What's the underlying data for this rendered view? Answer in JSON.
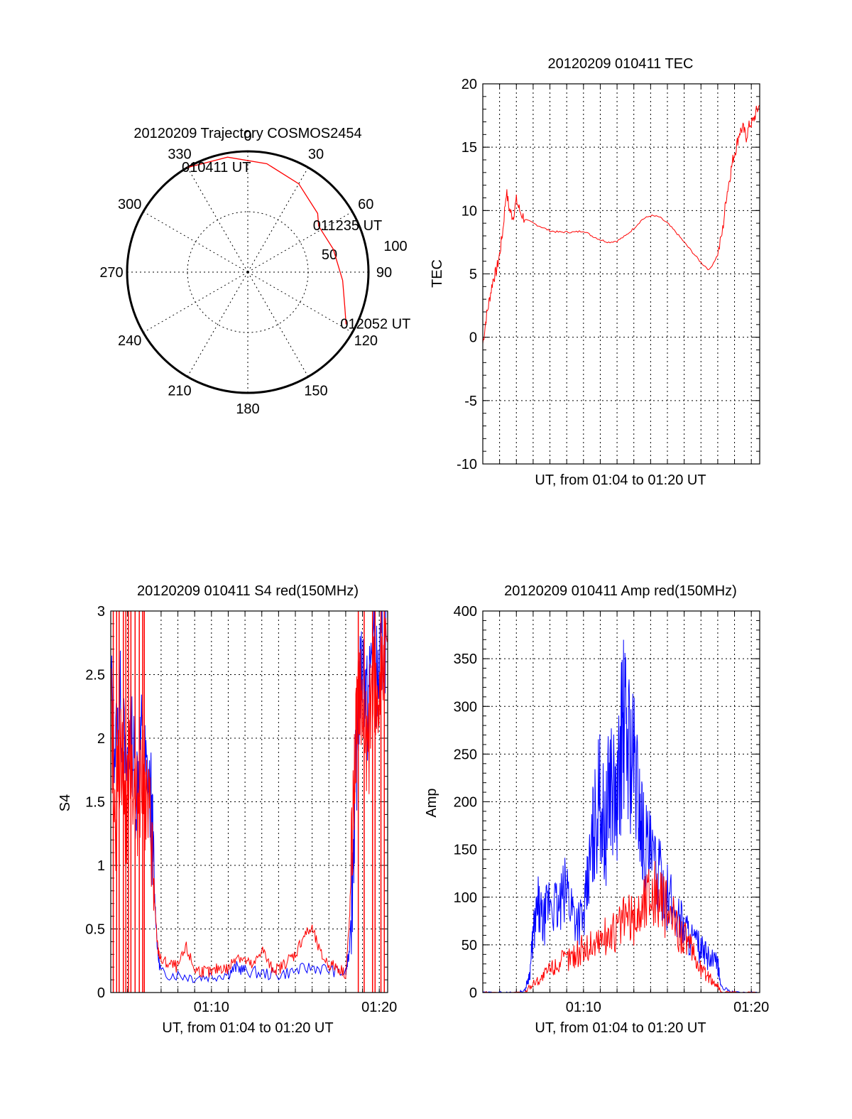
{
  "colors": {
    "red": "#ff0000",
    "blue": "#0000ff",
    "axis": "#000000",
    "grid": "#000000"
  },
  "chart_data": [
    {
      "id": "trajectory",
      "type": "polar",
      "title": "20120209 Trajectory COSMOS2454",
      "angle_labels": [
        "0",
        "30",
        "60",
        "90",
        "120",
        "150",
        "180",
        "210",
        "240",
        "270",
        "300",
        "330"
      ],
      "ring_labels": [
        "50",
        "100"
      ],
      "track": [
        {
          "azimuth": 330,
          "elevation": 0,
          "label": "010411 UT"
        },
        {
          "azimuth": 350,
          "elevation": 3
        },
        {
          "azimuth": 10,
          "elevation": 8
        },
        {
          "azimuth": 30,
          "elevation": 14
        },
        {
          "azimuth": 50,
          "elevation": 22
        },
        {
          "azimuth": 57,
          "elevation": 27,
          "label": "011235 UT"
        },
        {
          "azimuth": 75,
          "elevation": 24
        },
        {
          "azimuth": 95,
          "elevation": 19
        },
        {
          "azimuth": 110,
          "elevation": 13
        },
        {
          "azimuth": 118,
          "elevation": 7,
          "label": "012052 UT"
        }
      ]
    },
    {
      "id": "tec",
      "type": "line",
      "title": "20120209 010411 TEC",
      "xlabel": "UT, from 01:04 to 01:20 UT",
      "ylabel": "TEC",
      "x_unit": "minutes from 01:04",
      "xlim": [
        0,
        16.5
      ],
      "ylim": [
        -10,
        20
      ],
      "yticks": [
        20,
        15,
        10,
        5,
        0,
        -5,
        -10
      ],
      "grid": true,
      "series": [
        {
          "color": "red",
          "x": [
            0.0,
            0.2,
            0.4,
            0.6,
            0.8,
            1.0,
            1.2,
            1.4,
            1.6,
            1.8,
            2.0,
            2.2,
            2.5,
            3.0,
            3.5,
            4.0,
            4.5,
            5.0,
            5.5,
            6.0,
            6.5,
            7.0,
            7.5,
            8.0,
            8.5,
            9.0,
            9.5,
            10.0,
            10.5,
            11.0,
            11.5,
            12.0,
            12.5,
            13.0,
            13.5,
            14.0,
            14.3,
            14.5,
            14.7,
            14.9,
            15.1,
            15.3,
            15.5,
            15.7,
            15.9,
            16.1,
            16.3,
            16.5
          ],
          "y": [
            -0.5,
            1.5,
            3.0,
            4.5,
            5.2,
            6.5,
            8.5,
            11.5,
            10.0,
            9.5,
            10.8,
            10.0,
            9.3,
            9.0,
            8.7,
            8.4,
            8.3,
            8.3,
            8.3,
            8.4,
            8.0,
            7.7,
            7.5,
            7.6,
            8.0,
            8.6,
            9.3,
            9.6,
            9.5,
            9.0,
            8.3,
            7.5,
            6.7,
            5.9,
            5.3,
            6.5,
            8.5,
            11.0,
            12.5,
            14.0,
            15.0,
            16.2,
            16.5,
            15.8,
            16.8,
            17.0,
            17.8,
            18.3
          ]
        }
      ]
    },
    {
      "id": "s4",
      "type": "line",
      "title": "20120209 010411 S4 red(150MHz)",
      "xlabel": "UT, from 01:04 to 01:20 UT",
      "ylabel": "S4",
      "x_unit": "minutes from 01:04",
      "xlim": [
        0,
        16.5
      ],
      "ylim": [
        0,
        3
      ],
      "yticks": [
        "0",
        "0.5",
        "1",
        "1.5",
        "2",
        "2.5",
        "3"
      ],
      "xtick_labels": [
        {
          "x": 6,
          "label": "01:10"
        },
        {
          "x": 16,
          "label": "01:20"
        }
      ],
      "grid": true,
      "series": [
        {
          "color": "blue",
          "x": [
            0.0,
            0.3,
            0.6,
            0.9,
            1.2,
            1.5,
            1.8,
            2.1,
            2.4,
            2.6,
            2.8,
            3.0,
            4.0,
            5.0,
            6.0,
            7.0,
            7.5,
            8.0,
            9.0,
            10.0,
            11.0,
            12.0,
            13.0,
            14.0,
            14.2,
            14.4,
            14.6,
            14.8,
            15.0,
            15.3,
            15.6,
            15.9,
            16.2,
            16.5
          ],
          "y": [
            2.4,
            1.9,
            2.3,
            1.7,
            2.1,
            1.6,
            2.0,
            1.7,
            1.5,
            0.8,
            0.3,
            0.15,
            0.14,
            0.12,
            0.13,
            0.15,
            0.2,
            0.17,
            0.15,
            0.14,
            0.17,
            0.2,
            0.18,
            0.15,
            0.3,
            0.9,
            1.7,
            2.3,
            2.6,
            2.2,
            2.8,
            2.4,
            2.7,
            2.9
          ]
        },
        {
          "color": "red",
          "x": [
            0.0,
            0.3,
            0.6,
            0.9,
            1.2,
            1.5,
            1.8,
            2.1,
            2.4,
            2.6,
            2.8,
            3.0,
            3.5,
            4.0,
            4.5,
            5.0,
            5.5,
            6.0,
            6.5,
            7.0,
            7.5,
            8.0,
            8.5,
            9.0,
            9.5,
            10.0,
            10.5,
            11.0,
            11.5,
            12.0,
            12.5,
            13.0,
            13.5,
            14.0,
            14.2,
            14.4,
            14.6,
            14.8,
            15.0,
            15.3,
            15.6,
            15.9,
            16.2,
            16.5
          ],
          "y": [
            2.2,
            1.4,
            2.0,
            1.3,
            1.9,
            1.4,
            1.7,
            1.5,
            1.3,
            0.7,
            0.35,
            0.25,
            0.22,
            0.2,
            0.35,
            0.18,
            0.17,
            0.15,
            0.2,
            0.18,
            0.3,
            0.25,
            0.2,
            0.35,
            0.2,
            0.18,
            0.25,
            0.3,
            0.45,
            0.5,
            0.3,
            0.22,
            0.2,
            0.15,
            0.5,
            1.2,
            2.0,
            2.4,
            2.2,
            1.8,
            2.5,
            2.2,
            2.6,
            2.8
          ]
        }
      ]
    },
    {
      "id": "amp",
      "type": "line",
      "title": "20120209 010411 Amp red(150MHz)",
      "xlabel": "UT, from 01:04 to 01:20 UT",
      "ylabel": "Amp",
      "x_unit": "minutes from 01:04",
      "xlim": [
        0,
        16.5
      ],
      "ylim": [
        0,
        400
      ],
      "yticks": [
        0,
        50,
        100,
        150,
        200,
        250,
        300,
        350,
        400
      ],
      "xtick_labels": [
        {
          "x": 6,
          "label": "01:10"
        },
        {
          "x": 16,
          "label": "01:20"
        }
      ],
      "grid": true,
      "series": [
        {
          "color": "blue",
          "x": [
            0.0,
            1.0,
            2.0,
            2.5,
            2.8,
            3.0,
            3.3,
            3.6,
            4.0,
            4.5,
            5.0,
            5.5,
            6.0,
            6.3,
            6.6,
            7.0,
            7.3,
            7.6,
            8.0,
            8.3,
            8.6,
            9.0,
            9.3,
            9.6,
            10.0,
            10.5,
            11.0,
            11.5,
            12.0,
            12.5,
            13.0,
            13.5,
            14.0,
            14.2,
            15.0,
            16.5
          ],
          "y": [
            0,
            0,
            0,
            2,
            20,
            60,
            90,
            70,
            100,
            85,
            110,
            80,
            75,
            120,
            170,
            210,
            160,
            230,
            190,
            280,
            270,
            240,
            200,
            160,
            140,
            120,
            100,
            85,
            70,
            55,
            45,
            35,
            30,
            5,
            0,
            0
          ]
        },
        {
          "color": "red",
          "x": [
            0.0,
            2.5,
            3.0,
            3.5,
            4.0,
            4.5,
            5.0,
            5.5,
            6.0,
            6.5,
            7.0,
            7.5,
            8.0,
            8.5,
            9.0,
            9.5,
            10.0,
            10.5,
            11.0,
            11.5,
            12.0,
            12.5,
            13.0,
            13.5,
            14.0,
            14.2,
            16.5
          ],
          "y": [
            0,
            0,
            10,
            15,
            25,
            30,
            35,
            40,
            45,
            50,
            55,
            60,
            65,
            80,
            75,
            90,
            110,
            100,
            85,
            70,
            60,
            40,
            25,
            15,
            8,
            0,
            0
          ]
        }
      ]
    }
  ]
}
